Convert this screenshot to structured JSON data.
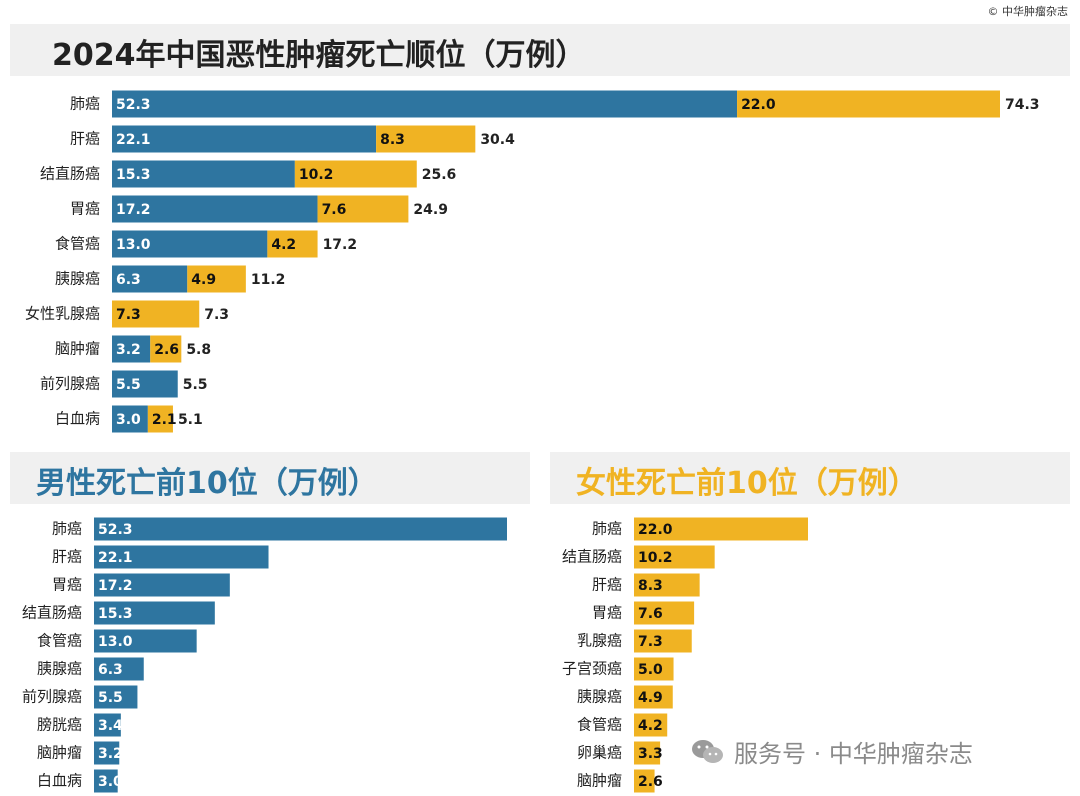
{
  "copyright": "© 中华肿瘤杂志",
  "watermark": {
    "text": "服务号 · 中华肿瘤杂志",
    "icon": "wechat-icon"
  },
  "colors": {
    "male": "#2e75a0",
    "female": "#f0b323"
  },
  "chart_data": [
    {
      "type": "bar",
      "stacked": true,
      "orientation": "horizontal",
      "title": "2024年中国恶性肿瘤死亡顺位（万例）",
      "categories": [
        "肺癌",
        "肝癌",
        "结直肠癌",
        "胃癌",
        "食管癌",
        "胰腺癌",
        "女性乳腺癌",
        "脑肿瘤",
        "前列腺癌",
        "白血病"
      ],
      "series": [
        {
          "color": "#2e75a0",
          "values": [
            52.3,
            22.1,
            15.3,
            17.2,
            13.0,
            6.3,
            null,
            3.2,
            5.5,
            3.0
          ],
          "labels": [
            "52.3",
            "22.1",
            "15.3",
            "17.2",
            "13.0",
            "6.3",
            "",
            "3.2",
            "5.5",
            "3.0"
          ]
        },
        {
          "color": "#f0b323",
          "values": [
            22.0,
            8.3,
            10.2,
            7.6,
            4.2,
            4.9,
            7.3,
            2.6,
            null,
            2.1
          ],
          "labels": [
            "22.0",
            "8.3",
            "10.2",
            "7.6",
            "4.2",
            "4.9",
            "7.3",
            "2.6",
            "",
            "2.1"
          ]
        }
      ],
      "totals": [
        "74.3",
        "30.4",
        "25.6",
        "24.9",
        "17.2",
        "11.2",
        "7.3",
        "5.8",
        "5.5",
        "5.1"
      ],
      "grid": false
    },
    {
      "type": "bar",
      "orientation": "horizontal",
      "title": "男性死亡前10位（万例）",
      "categories": [
        "肺癌",
        "肝癌",
        "胃癌",
        "结直肠癌",
        "食管癌",
        "胰腺癌",
        "前列腺癌",
        "膀胱癌",
        "脑肿瘤",
        "白血病"
      ],
      "values": [
        52.3,
        22.1,
        17.2,
        15.3,
        13.0,
        6.3,
        5.5,
        3.4,
        3.2,
        3.0
      ],
      "labels": [
        "52.3",
        "22.1",
        "17.2",
        "15.3",
        "13.0",
        "6.3",
        "5.5",
        "3.4",
        "3.2",
        "3.0"
      ],
      "color": "#2e75a0",
      "grid": false
    },
    {
      "type": "bar",
      "orientation": "horizontal",
      "title": "女性死亡前10位（万例）",
      "categories": [
        "肺癌",
        "结直肠癌",
        "肝癌",
        "胃癌",
        "乳腺癌",
        "子宫颈癌",
        "胰腺癌",
        "食管癌",
        "卵巢癌",
        "脑肿瘤"
      ],
      "values": [
        22.0,
        10.2,
        8.3,
        7.6,
        7.3,
        5.0,
        4.9,
        4.2,
        3.3,
        2.6
      ],
      "labels": [
        "22.0",
        "10.2",
        "8.3",
        "7.6",
        "7.3",
        "5.0",
        "4.9",
        "4.2",
        "3.3",
        "2.6"
      ],
      "color": "#f0b323",
      "grid": false
    }
  ]
}
